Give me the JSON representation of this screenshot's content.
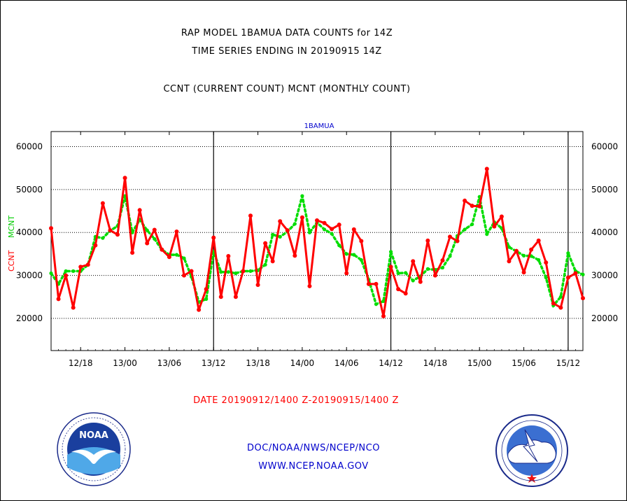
{
  "header": {
    "line1": "RAP MODEL 1BAMUA DATA COUNTS for 14Z",
    "line2": "TIME SERIES ENDING IN 20190915 14Z",
    "line3": "CCNT (CURRENT COUNT) MCNT (MONTHLY COUNT)"
  },
  "chart_data": {
    "type": "line",
    "title": "1BAMUA",
    "ylabel_left_red": "CCNT",
    "ylabel_left_green": "MCNT",
    "ylim": [
      12500,
      63500
    ],
    "yticks": [
      20000,
      30000,
      40000,
      50000,
      60000
    ],
    "ytick_labels": [
      "20000",
      "30000",
      "40000",
      "50000",
      "60000"
    ],
    "x_range": [
      "2019-09-12T14:00",
      "2019-09-15T14:00"
    ],
    "x_step_hours": 1,
    "xtick_labels": [
      "12/18",
      "13/00",
      "13/06",
      "13/12",
      "13/18",
      "14/00",
      "14/06",
      "14/12",
      "14/18",
      "15/00",
      "15/06",
      "15/12"
    ],
    "day_boundaries": [
      "2019-09-13T12:00",
      "2019-09-14T12:00",
      "2019-09-15T12:00"
    ],
    "grid": "horizontal dotted",
    "xlabel": "DATE 20190912/1400 Z-20190915/1400 Z",
    "series": [
      {
        "name": "CCNT",
        "color": "#ff0000",
        "values": [
          41000,
          24500,
          30000,
          22500,
          32000,
          32500,
          37000,
          46800,
          40500,
          39500,
          52700,
          35300,
          45200,
          37500,
          40600,
          36000,
          34300,
          40200,
          30000,
          31000,
          22000,
          26800,
          38800,
          25000,
          34500,
          25000,
          31000,
          43900,
          27800,
          37500,
          33300,
          42600,
          40500,
          34600,
          43500,
          27500,
          42800,
          42200,
          40800,
          41800,
          30500,
          40700,
          38000,
          28000,
          28000,
          20500,
          32000,
          26800,
          25800,
          33300,
          28500,
          38100,
          30000,
          33500,
          39000,
          38000,
          47400,
          46200,
          46100,
          54800,
          41400,
          43700,
          33300,
          35700,
          30700,
          36000,
          38100,
          33000,
          23500,
          22500,
          29500,
          30500,
          24700
        ]
      },
      {
        "name": "MCNT",
        "color": "#00dd00",
        "values": [
          30500,
          28000,
          31000,
          31000,
          31000,
          32500,
          39000,
          38700,
          40400,
          41500,
          48500,
          40000,
          43000,
          40500,
          38500,
          36000,
          34800,
          34800,
          34000,
          29700,
          23800,
          24500,
          35500,
          30800,
          30800,
          30500,
          31000,
          31000,
          31200,
          32500,
          39500,
          39000,
          40200,
          42000,
          48500,
          40000,
          42300,
          40700,
          39700,
          37000,
          35000,
          34800,
          33600,
          29000,
          23300,
          24000,
          35500,
          30500,
          30600,
          28800,
          29800,
          31500,
          31300,
          31800,
          34500,
          39200,
          40700,
          41900,
          48300,
          39600,
          42400,
          41000,
          36600,
          35600,
          34600,
          34500,
          33600,
          29500,
          23000,
          25000,
          35200,
          31000,
          30200
        ]
      }
    ]
  },
  "footer": {
    "date_range": "DATE 20190912/1400 Z-20190915/1400 Z",
    "org": "DOC/NOAA/NWS/NCEP/NCO",
    "url": "WWW.NCEP.NOAA.GOV"
  },
  "logos": {
    "noaa_text": "NOAA",
    "nws_ring_text": "NATIONAL WEATHER SERVICE"
  },
  "colors": {
    "ccnt": "#ff0000",
    "mcnt": "#00dd00",
    "link_blue": "#0000cc"
  }
}
